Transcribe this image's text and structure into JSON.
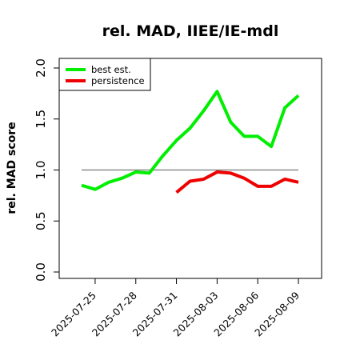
{
  "chart_data": {
    "type": "line",
    "title": "rel. MAD, IIEE/IE-mdl",
    "xlabel": "",
    "ylabel": "rel. MAD score",
    "x": [
      "2025-07-24",
      "2025-07-25",
      "2025-07-26",
      "2025-07-27",
      "2025-07-28",
      "2025-07-29",
      "2025-07-30",
      "2025-07-31",
      "2025-08-01",
      "2025-08-02",
      "2025-08-03",
      "2025-08-04",
      "2025-08-05",
      "2025-08-06",
      "2025-08-07",
      "2025-08-08",
      "2025-08-09"
    ],
    "xticks": [
      "2025-07-25",
      "2025-07-28",
      "2025-07-31",
      "2025-08-03",
      "2025-08-06",
      "2025-08-09"
    ],
    "yticks": [
      "0.0",
      "0.5",
      "1.0",
      "1.5",
      "2.0"
    ],
    "ylim": [
      0,
      2.0
    ],
    "reference_line": 1.0,
    "legend_position": "top-left",
    "series": [
      {
        "name": "best est.",
        "color": "#00ee00",
        "values": [
          0.85,
          0.81,
          0.88,
          0.92,
          0.98,
          0.97,
          1.14,
          1.29,
          1.41,
          1.58,
          1.77,
          1.47,
          1.33,
          1.33,
          1.23,
          1.61,
          1.73
        ]
      },
      {
        "name": "persistence",
        "color": "#ee0000",
        "values": [
          null,
          null,
          null,
          null,
          null,
          null,
          null,
          0.78,
          0.89,
          0.91,
          0.98,
          0.97,
          0.92,
          0.84,
          0.84,
          0.91,
          0.88
        ]
      }
    ]
  }
}
